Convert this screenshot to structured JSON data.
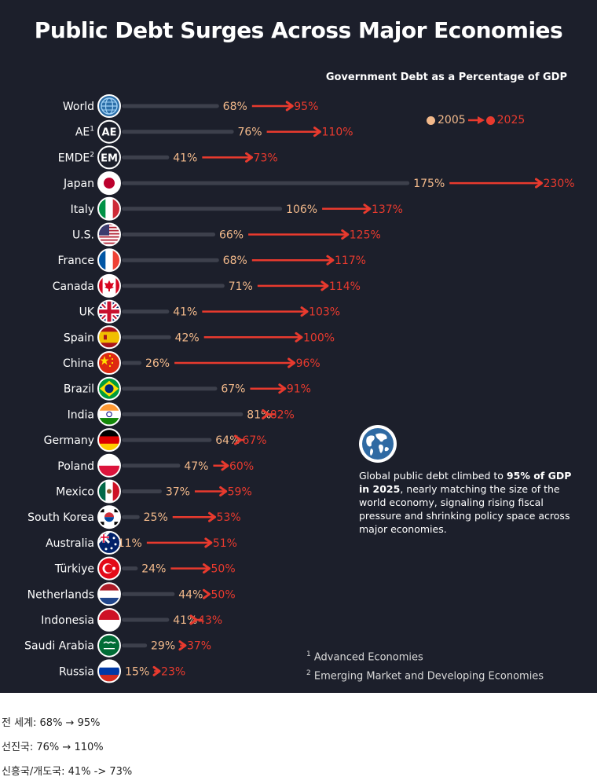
{
  "title": "Public Debt Surges Across Major Economies",
  "subtitle": "Government Debt as a Percentage of GDP",
  "legend": {
    "year1": "2005",
    "year2": "2025"
  },
  "colors": {
    "background": "#1c1f2b",
    "value_2005": "#f2b98b",
    "value_2025": "#e83a2e",
    "track": "#3d404c"
  },
  "note": {
    "text_before": "Global public debt climbed to ",
    "bold": "95% of GDP in 2025",
    "text_after": ", nearly matching the size of the world economy, signaling rising fiscal pressure and shrinking policy space across major economies."
  },
  "footnotes": [
    {
      "mark": "1",
      "text": "Advanced Economies"
    },
    {
      "mark": "2",
      "text": "Emerging Market and Developing Economies"
    }
  ],
  "summary": [
    "전 세계: 68% → 95%",
    "선진국: 76% → 110%",
    "신흥국/개도국: 41% -> 73%"
  ],
  "chart_data": {
    "type": "dumbbell",
    "unit": "%",
    "series": [
      {
        "name": "2005"
      },
      {
        "name": "2025"
      }
    ],
    "categories": [
      "World",
      "AE",
      "EMDE",
      "Japan",
      "Italy",
      "U.S.",
      "France",
      "Canada",
      "UK",
      "Spain",
      "China",
      "Brazil",
      "India",
      "Germany",
      "Poland",
      "Mexico",
      "South Korea",
      "Australia",
      "Türkiye",
      "Netherlands",
      "Indonesia",
      "Saudi Arabia",
      "Russia"
    ],
    "label_sup": {
      "AE": "1",
      "EMDE": "2"
    },
    "icons": [
      "globe-icon",
      "ae-badge-icon",
      "em-badge-icon",
      "flag-japan-icon",
      "flag-italy-icon",
      "flag-us-icon",
      "flag-france-icon",
      "flag-canada-icon",
      "flag-uk-icon",
      "flag-spain-icon",
      "flag-china-icon",
      "flag-brazil-icon",
      "flag-india-icon",
      "flag-germany-icon",
      "flag-poland-icon",
      "flag-mexico-icon",
      "flag-south-korea-icon",
      "flag-australia-icon",
      "flag-turkiye-icon",
      "flag-netherlands-icon",
      "flag-indonesia-icon",
      "flag-saudi-arabia-icon",
      "flag-russia-icon"
    ],
    "badge_text": {
      "AE": "AE",
      "EMDE": "EM"
    },
    "values_2005": [
      68,
      76,
      41,
      175,
      106,
      66,
      68,
      71,
      41,
      42,
      26,
      67,
      81,
      64,
      47,
      37,
      25,
      11,
      24,
      44,
      41,
      29,
      15
    ],
    "values_2025": [
      95,
      110,
      73,
      230,
      137,
      125,
      117,
      114,
      103,
      100,
      96,
      91,
      82,
      67,
      60,
      59,
      53,
      51,
      50,
      50,
      43,
      37,
      23
    ],
    "xlim": [
      0,
      230
    ]
  }
}
